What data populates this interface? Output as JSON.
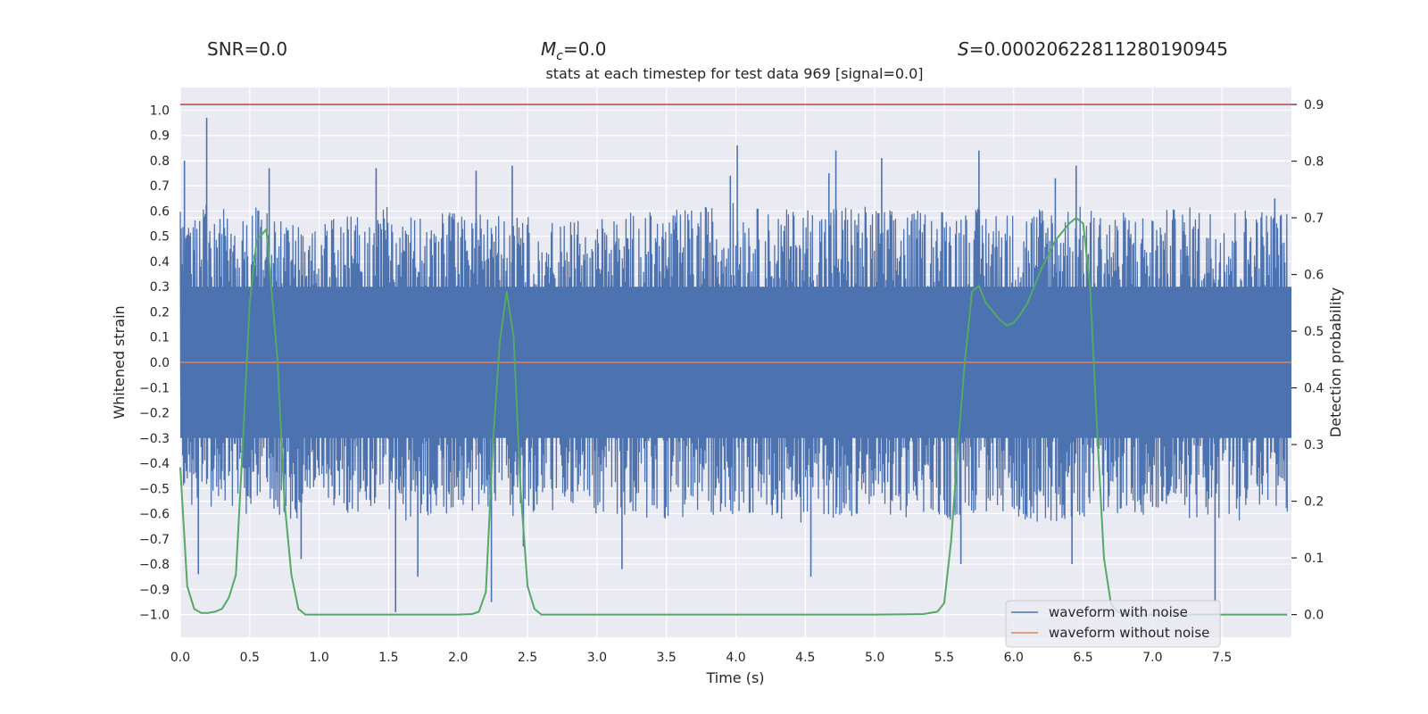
{
  "header": {
    "snr": "SNR=0.0",
    "mc_symbol": "M",
    "mc_sub": "c",
    "mc_value": "=0.0",
    "s_symbol": "S",
    "s_value": "=0.00020622811280190945"
  },
  "chart_data": {
    "type": "line",
    "title": "stats at each timestep for test data 969 [signal=0.0]",
    "xlabel": "Time (s)",
    "ylabel": "Whitened strain",
    "y2label": "Detection probability",
    "xlim": [
      0.0,
      8.0
    ],
    "ylim": [
      -1.09,
      1.09
    ],
    "y2lim": [
      -0.04,
      0.93
    ],
    "x_ticks": [
      "0.0",
      "0.5",
      "1.0",
      "1.5",
      "2.0",
      "2.5",
      "3.0",
      "3.5",
      "4.0",
      "4.5",
      "5.0",
      "5.5",
      "6.0",
      "6.5",
      "7.0",
      "7.5"
    ],
    "y_ticks": [
      "1.0",
      "0.9",
      "0.8",
      "0.7",
      "0.6",
      "0.5",
      "0.4",
      "0.3",
      "0.2",
      "0.1",
      "0.0",
      "−0.1",
      "−0.2",
      "−0.3",
      "−0.4",
      "−0.5",
      "−0.6",
      "−0.7",
      "−0.8",
      "−0.9",
      "−1.0"
    ],
    "y2_ticks": [
      "0.9",
      "0.8",
      "0.7",
      "0.6",
      "0.5",
      "0.4",
      "0.3",
      "0.2",
      "0.1",
      "0.0"
    ],
    "threshold": 0.9,
    "series": [
      {
        "name": "waveform with noise",
        "color": "#4c72b0",
        "axis": "left",
        "envelope": {
          "x": [
            0.0,
            0.1,
            0.2,
            0.3,
            0.4,
            0.5,
            0.6,
            0.7,
            0.8,
            0.9,
            1.0,
            1.25,
            1.5,
            1.75,
            2.0,
            2.25,
            2.5,
            2.75,
            3.0,
            3.25,
            3.5,
            3.75,
            4.0,
            4.25,
            4.5,
            4.75,
            5.0,
            5.25,
            5.5,
            5.75,
            6.0,
            6.25,
            6.5,
            6.75,
            7.0,
            7.25,
            7.5,
            7.75,
            8.0
          ],
          "upper": [
            0.62,
            0.6,
            0.64,
            0.62,
            0.52,
            0.6,
            0.66,
            0.6,
            0.56,
            0.52,
            0.55,
            0.6,
            0.62,
            0.58,
            0.62,
            0.58,
            0.6,
            0.55,
            0.58,
            0.6,
            0.6,
            0.62,
            0.64,
            0.6,
            0.62,
            0.64,
            0.62,
            0.6,
            0.62,
            0.62,
            0.6,
            0.64,
            0.62,
            0.6,
            0.6,
            0.62,
            0.62,
            0.62,
            0.6
          ],
          "lower": [
            -0.46,
            -0.6,
            -0.62,
            -0.58,
            -0.6,
            -0.62,
            -0.58,
            -0.6,
            -0.64,
            -0.62,
            -0.58,
            -0.6,
            -0.64,
            -0.62,
            -0.6,
            -0.6,
            -0.64,
            -0.58,
            -0.6,
            -0.62,
            -0.62,
            -0.62,
            -0.6,
            -0.62,
            -0.64,
            -0.62,
            -0.6,
            -0.62,
            -0.64,
            -0.6,
            -0.62,
            -0.64,
            -0.62,
            -0.6,
            -0.62,
            -0.62,
            -0.64,
            -0.62,
            -0.6
          ]
        },
        "peaks": [
          {
            "x": 0.19,
            "y": 0.97
          },
          {
            "x": 0.03,
            "y": 0.8
          },
          {
            "x": 0.64,
            "y": 0.77
          },
          {
            "x": 1.41,
            "y": 0.77
          },
          {
            "x": 2.13,
            "y": 0.76
          },
          {
            "x": 2.39,
            "y": 0.78
          },
          {
            "x": 3.96,
            "y": 0.74
          },
          {
            "x": 4.01,
            "y": 0.86
          },
          {
            "x": 4.72,
            "y": 0.84
          },
          {
            "x": 4.67,
            "y": 0.75
          },
          {
            "x": 5.05,
            "y": 0.81
          },
          {
            "x": 5.75,
            "y": 0.84
          },
          {
            "x": 6.3,
            "y": 0.73
          },
          {
            "x": 6.45,
            "y": 0.78
          },
          {
            "x": 7.88,
            "y": 0.65
          },
          {
            "x": 1.55,
            "y": -0.99
          },
          {
            "x": 0.13,
            "y": -0.84
          },
          {
            "x": 0.87,
            "y": -0.78
          },
          {
            "x": 1.71,
            "y": -0.85
          },
          {
            "x": 2.24,
            "y": -0.95
          },
          {
            "x": 2.47,
            "y": -0.73
          },
          {
            "x": 3.18,
            "y": -0.82
          },
          {
            "x": 4.54,
            "y": -0.85
          },
          {
            "x": 5.62,
            "y": -0.8
          },
          {
            "x": 7.45,
            "y": -0.95
          },
          {
            "x": 6.42,
            "y": -0.8
          }
        ]
      },
      {
        "name": "waveform without noise",
        "color": "#dd8452",
        "axis": "left",
        "x": [
          0.0,
          8.0
        ],
        "y": [
          0.0,
          0.0
        ]
      },
      {
        "name": "detection probability",
        "color": "#55a868",
        "axis": "right",
        "x": [
          0.0,
          0.05,
          0.1,
          0.15,
          0.2,
          0.25,
          0.3,
          0.35,
          0.4,
          0.45,
          0.5,
          0.55,
          0.62,
          0.7,
          0.75,
          0.8,
          0.85,
          0.9,
          1.0,
          1.5,
          2.0,
          2.1,
          2.15,
          2.2,
          2.25,
          2.3,
          2.35,
          2.4,
          2.45,
          2.5,
          2.55,
          2.6,
          2.65,
          3.0,
          4.0,
          5.0,
          5.35,
          5.45,
          5.5,
          5.55,
          5.6,
          5.65,
          5.7,
          5.75,
          5.8,
          5.9,
          5.95,
          6.0,
          6.05,
          6.1,
          6.2,
          6.3,
          6.4,
          6.45,
          6.5,
          6.55,
          6.6,
          6.65,
          6.7,
          6.75,
          6.8,
          6.9,
          7.0,
          7.5,
          7.97
        ],
        "y": [
          0.26,
          0.05,
          0.01,
          0.003,
          0.003,
          0.005,
          0.01,
          0.03,
          0.07,
          0.3,
          0.55,
          0.66,
          0.68,
          0.45,
          0.2,
          0.07,
          0.01,
          0.0,
          0.0,
          0.0,
          0.0,
          0.001,
          0.005,
          0.04,
          0.3,
          0.48,
          0.57,
          0.49,
          0.22,
          0.05,
          0.01,
          0.0,
          0.0,
          0.0,
          0.0,
          0.0,
          0.001,
          0.005,
          0.02,
          0.13,
          0.3,
          0.45,
          0.57,
          0.58,
          0.55,
          0.52,
          0.51,
          0.515,
          0.53,
          0.55,
          0.61,
          0.66,
          0.69,
          0.7,
          0.69,
          0.58,
          0.33,
          0.1,
          0.02,
          0.005,
          0.0,
          0.0,
          0.0,
          0.0,
          0.0
        ]
      }
    ],
    "legend": {
      "position": "lower-right",
      "entries": [
        {
          "label": "waveform with noise",
          "color": "#4c72b0"
        },
        {
          "label": "waveform without noise",
          "color": "#dd8452"
        }
      ]
    },
    "colors": {
      "plot_bg": "#eaeaf2",
      "grid": "#ffffff",
      "threshold": "#c44e52",
      "text": "#262626"
    }
  }
}
